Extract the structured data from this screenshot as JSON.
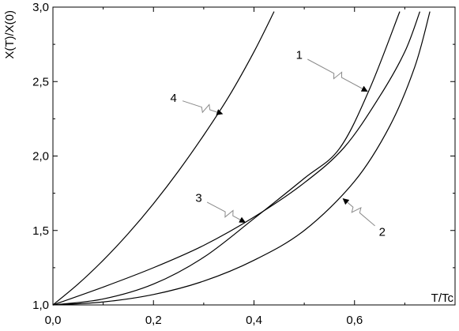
{
  "chart_data": {
    "type": "line",
    "xlabel": "T/Tc",
    "ylabel": "X(T)/X(0)",
    "xlim": [
      0.0,
      0.8
    ],
    "ylim": [
      1.0,
      3.0
    ],
    "x_ticks": [
      {
        "value": 0.0,
        "label": "0,0"
      },
      {
        "value": 0.2,
        "label": "0,2"
      },
      {
        "value": 0.4,
        "label": "0,4"
      },
      {
        "value": 0.6,
        "label": "0,6"
      }
    ],
    "y_ticks": [
      {
        "value": 1.0,
        "label": "1,0"
      },
      {
        "value": 1.5,
        "label": "1,5"
      },
      {
        "value": 2.0,
        "label": "2,0"
      },
      {
        "value": 2.5,
        "label": "2,5"
      },
      {
        "value": 3.0,
        "label": "3,0"
      }
    ],
    "grid": false,
    "legend": "none",
    "series": [
      {
        "label": "1",
        "x": [
          0.0,
          0.1,
          0.2,
          0.3,
          0.4,
          0.5,
          0.57,
          0.63,
          0.69
        ],
        "y": [
          1.0,
          1.04,
          1.14,
          1.32,
          1.58,
          1.85,
          2.05,
          2.45,
          2.97
        ],
        "arrow_at": [
          0.628,
          2.43
        ],
        "label_at": [
          0.49,
          2.68
        ]
      },
      {
        "label": "2",
        "x": [
          0.0,
          0.1,
          0.2,
          0.3,
          0.4,
          0.5,
          0.6,
          0.67,
          0.72,
          0.75
        ],
        "y": [
          1.0,
          1.02,
          1.07,
          1.16,
          1.3,
          1.5,
          1.83,
          2.2,
          2.6,
          2.97
        ],
        "arrow_at": [
          0.575,
          1.72
        ],
        "label_at": [
          0.655,
          1.49
        ]
      },
      {
        "label": "3",
        "x": [
          0.0,
          0.1,
          0.2,
          0.3,
          0.4,
          0.5,
          0.58,
          0.65,
          0.7,
          0.73
        ],
        "y": [
          1.0,
          1.12,
          1.25,
          1.4,
          1.59,
          1.82,
          2.06,
          2.4,
          2.7,
          2.97
        ],
        "arrow_at": [
          0.385,
          1.55
        ],
        "label_at": [
          0.29,
          1.72
        ]
      },
      {
        "label": "4",
        "x": [
          0.0,
          0.05,
          0.1,
          0.15,
          0.2,
          0.25,
          0.3,
          0.35,
          0.4,
          0.44
        ],
        "y": [
          1.0,
          1.14,
          1.3,
          1.48,
          1.68,
          1.9,
          2.14,
          2.4,
          2.7,
          2.97
        ],
        "arrow_at": [
          0.34,
          2.28
        ],
        "label_at": [
          0.24,
          2.39
        ]
      }
    ]
  }
}
